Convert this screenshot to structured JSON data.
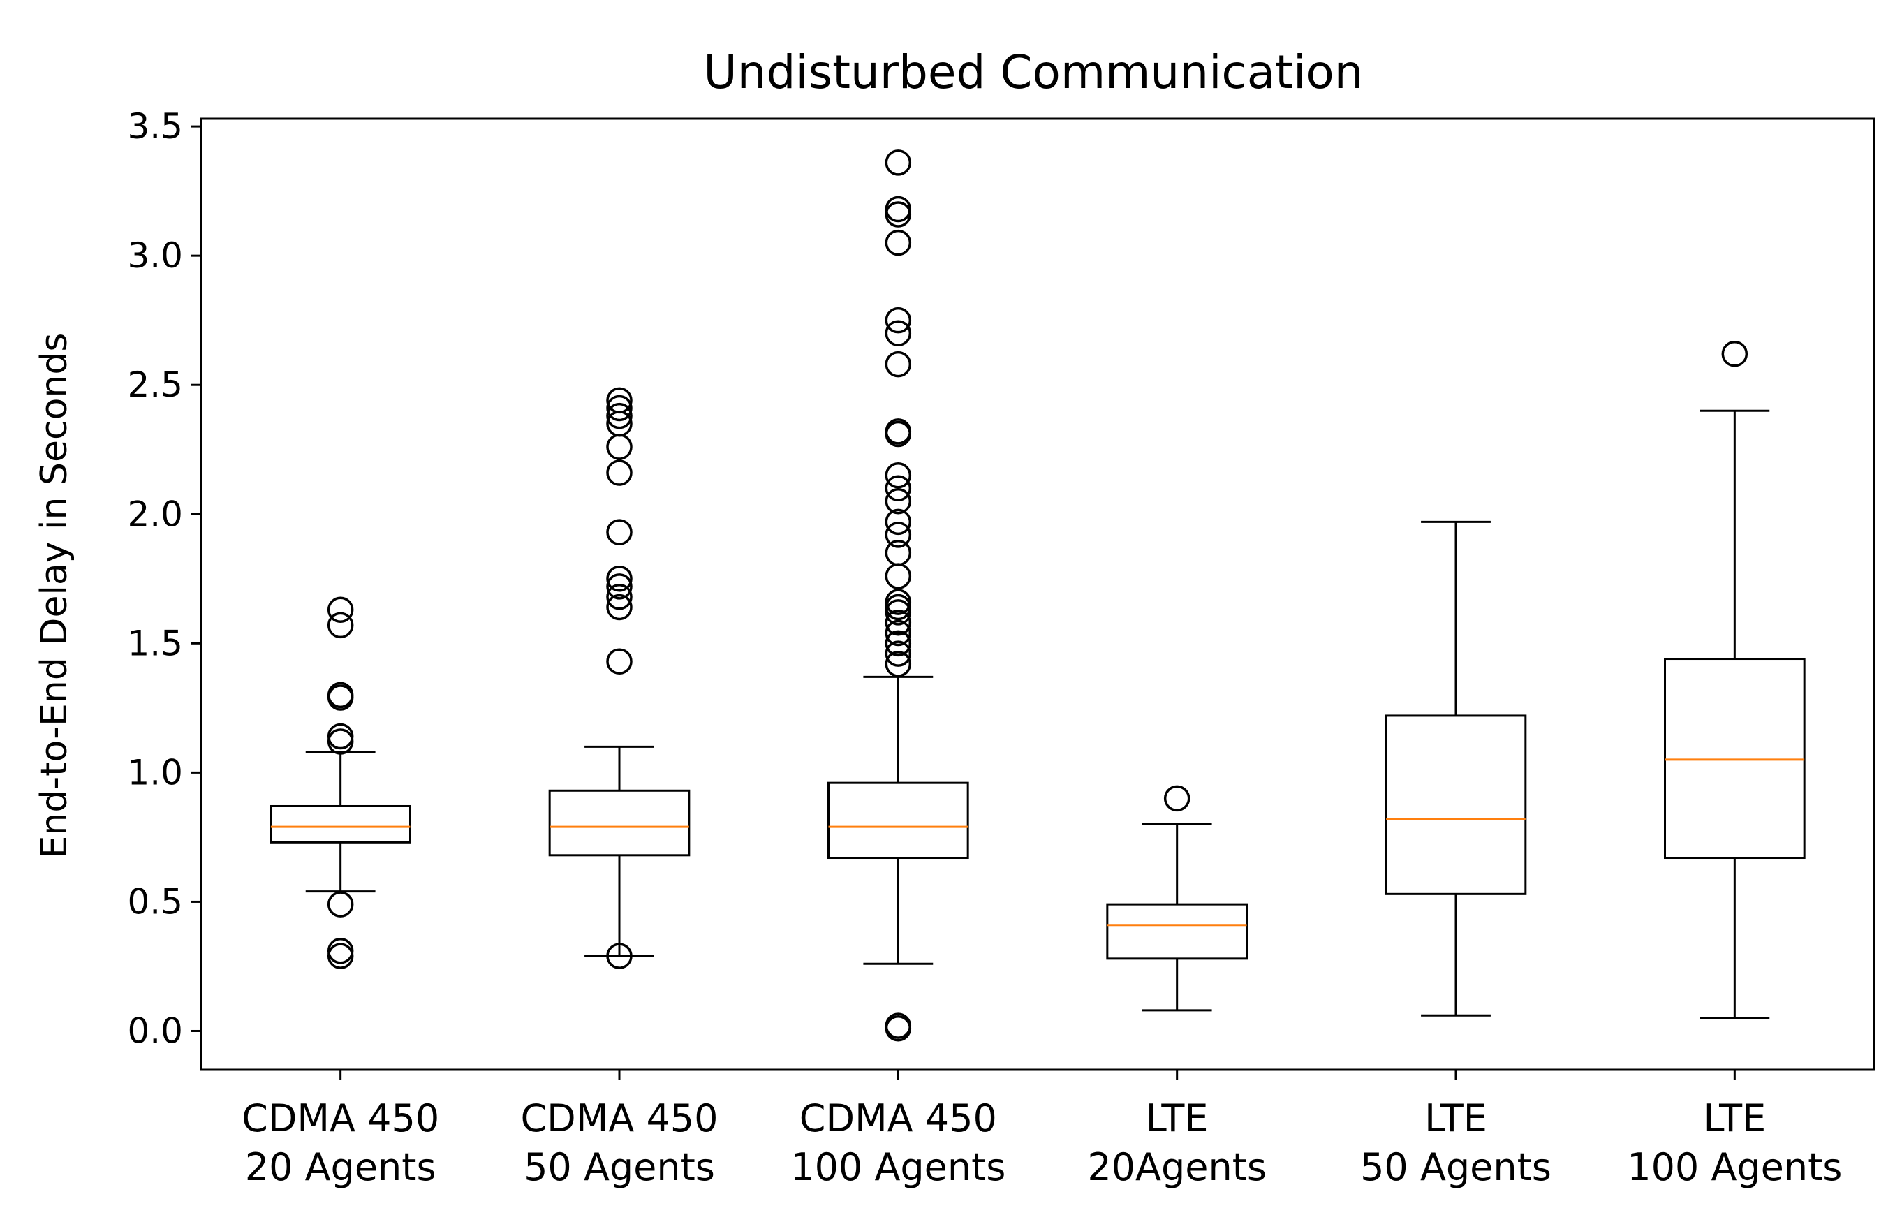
{
  "chart_data": {
    "type": "box",
    "title": "Undisturbed Communication",
    "xlabel": "",
    "ylabel": "End-to-End Delay in Seconds",
    "ylim": [
      -0.15,
      3.53
    ],
    "yticks": [
      "0.0",
      "0.5",
      "1.0",
      "1.5",
      "2.0",
      "2.5",
      "3.0",
      "3.5"
    ],
    "grid": false,
    "categories": [
      [
        "CDMA 450",
        "20 Agents"
      ],
      [
        "CDMA 450",
        "50 Agents"
      ],
      [
        "CDMA 450",
        "100 Agents"
      ],
      [
        "LTE",
        "20Agents"
      ],
      [
        "LTE",
        "50 Agents"
      ],
      [
        "LTE",
        "100 Agents"
      ]
    ],
    "boxes": [
      {
        "whisker_low": 0.54,
        "q1": 0.73,
        "median": 0.79,
        "q3": 0.87,
        "whisker_high": 1.08,
        "outliers": [
          1.63,
          1.57,
          1.3,
          1.29,
          1.14,
          1.12,
          0.49,
          0.31,
          0.29
        ]
      },
      {
        "whisker_low": 0.29,
        "q1": 0.68,
        "median": 0.79,
        "q3": 0.93,
        "whisker_high": 1.1,
        "outliers": [
          2.44,
          2.41,
          2.38,
          2.35,
          2.26,
          2.16,
          1.93,
          1.75,
          1.72,
          1.68,
          1.64,
          1.43,
          0.29
        ]
      },
      {
        "whisker_low": 0.26,
        "q1": 0.67,
        "median": 0.79,
        "q3": 0.96,
        "whisker_high": 1.37,
        "outliers": [
          3.36,
          3.18,
          3.16,
          3.05,
          2.75,
          2.7,
          2.58,
          2.32,
          2.31,
          2.15,
          2.1,
          2.05,
          1.97,
          1.92,
          1.85,
          1.76,
          1.66,
          1.64,
          1.62,
          1.58,
          1.54,
          1.5,
          1.46,
          1.42,
          0.02,
          0.01
        ]
      },
      {
        "whisker_low": 0.08,
        "q1": 0.28,
        "median": 0.41,
        "q3": 0.49,
        "whisker_high": 0.8,
        "outliers": [
          0.9
        ]
      },
      {
        "whisker_low": 0.06,
        "q1": 0.53,
        "median": 0.82,
        "q3": 1.22,
        "whisker_high": 1.97,
        "outliers": []
      },
      {
        "whisker_low": 0.05,
        "q1": 0.67,
        "median": 1.05,
        "q3": 1.44,
        "whisker_high": 2.4,
        "outliers": [
          2.62
        ]
      }
    ],
    "colors": {
      "box": "#000000",
      "median": "#ff7f0e",
      "outlier": "#000000",
      "background": "#ffffff"
    }
  }
}
